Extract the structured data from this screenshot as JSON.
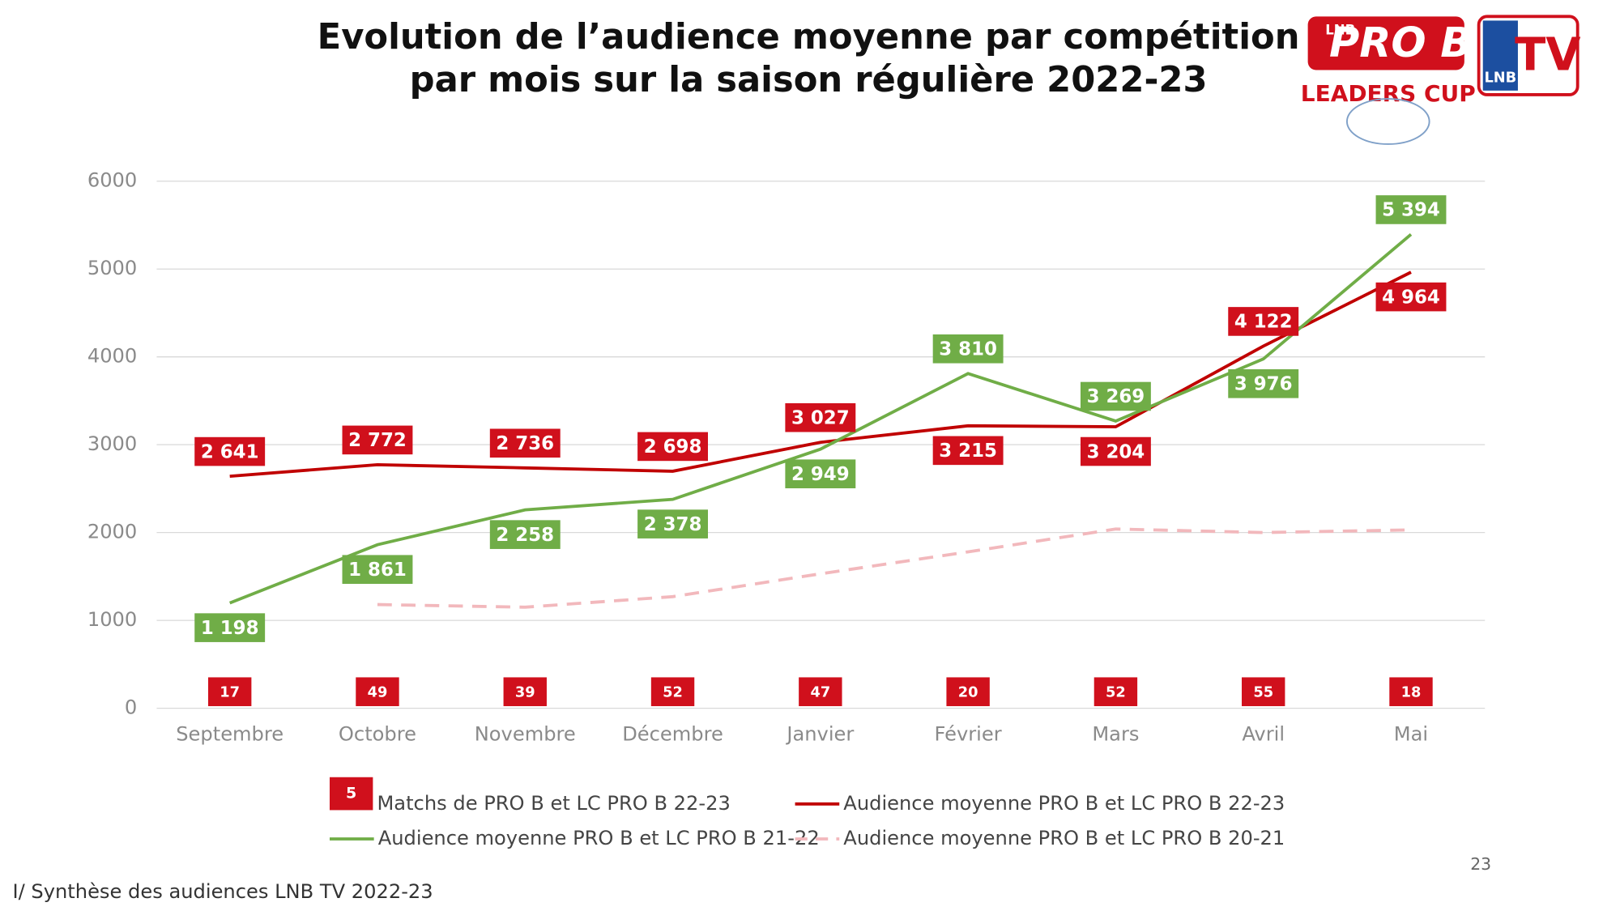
{
  "chart_data": {
    "type": "line",
    "title": [
      "Evolution de l’audience moyenne par compétition",
      "par mois sur la saison régulière 2022-23"
    ],
    "categories": [
      "Septembre",
      "Octobre",
      "Novembre",
      "Décembre",
      "Janvier",
      "Février",
      "Mars",
      "Avril",
      "Mai"
    ],
    "ylim": [
      0,
      6000
    ],
    "yticks": [
      0,
      1000,
      2000,
      3000,
      4000,
      5000,
      6000
    ],
    "grid": true,
    "matches": {
      "name": "Matchs de PRO B et LC PRO B 22-23",
      "color": "#d0101c",
      "legend_sample": "5",
      "values": [
        17,
        49,
        39,
        52,
        47,
        20,
        52,
        55,
        18
      ]
    },
    "series": [
      {
        "name": "Audience moyenne PRO B et LC PRO B 22-23",
        "color": "#c00000",
        "values": [
          2641,
          2772,
          2736,
          2698,
          3027,
          3215,
          3204,
          4122,
          4964
        ],
        "value_labels": [
          "2 641",
          "2 772",
          "2 736",
          "2 698",
          "3 027",
          "3 215",
          "3 204",
          "4 122",
          "4 964"
        ]
      },
      {
        "name": "Audience moyenne PRO B et LC PRO B 21-22",
        "color": "#70ad47",
        "values": [
          1198,
          1861,
          2258,
          2378,
          2949,
          3810,
          3269,
          3976,
          5394
        ],
        "value_labels": [
          "1 198",
          "1 861",
          "2 258",
          "2 378",
          "2 949",
          "3 810",
          "3 269",
          "3 976",
          "5 394"
        ]
      },
      {
        "name": "Audience moyenne PRO B et LC PRO B 20-21",
        "color": "#f2b8bc",
        "dashed": true,
        "values": [
          null,
          1180,
          1150,
          1270,
          1530,
          1780,
          2040,
          2000,
          2030
        ]
      }
    ]
  },
  "logos": {
    "lnb": "LNB",
    "prob": "PRO B",
    "leaders_cup": "LEADERS CUP",
    "tv": "TV"
  },
  "footer": {
    "section": "I/ Synthèse des audiences LNB TV 2022-23",
    "page": "23"
  }
}
